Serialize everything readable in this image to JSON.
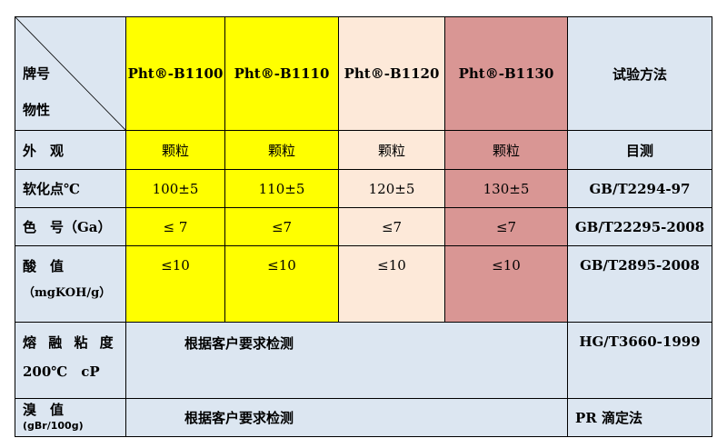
{
  "header": {
    "corner_top": "牌号",
    "corner_bottom": "物性",
    "products": [
      "Pht®-B1100",
      "Pht®-B1110",
      "Pht®-B1120",
      "Pht®-B1130"
    ],
    "method": "试验方法"
  },
  "rows": [
    {
      "label": "外　观",
      "values": [
        "颗粒",
        "颗粒",
        "颗粒",
        "颗粒"
      ],
      "method": "目测"
    },
    {
      "label": "软化点℃",
      "values": [
        "100±5",
        "110±5",
        "120±5",
        "130±5"
      ],
      "method": "GB/T2294-97"
    },
    {
      "label": "色　号（Ga）",
      "values": [
        "≤ 7",
        "≤7",
        "≤7",
        "≤7"
      ],
      "method": "GB/T22295-2008"
    },
    {
      "label": "酸　值",
      "sublabel": "（mgKOH/g）",
      "values": [
        "≤10",
        "≤10",
        "≤10",
        "≤10"
      ],
      "method": "GB/T2895-2008"
    }
  ],
  "merged_rows": [
    {
      "label": "熔 融 粘 度",
      "sublabel": "200℃　cP",
      "value": "根据客户要求检测",
      "method": "HG/T3660-1999"
    },
    {
      "label": "溴　值",
      "sublabel": "(gBr/100g)",
      "value": "根据客户要求检测",
      "method": "PR 滴定法"
    }
  ],
  "colors": {
    "label_bg": "#dce6f1",
    "b1100": "#ffff00",
    "b1110": "#ffff00",
    "b1120": "#fde9d9",
    "b1130": "#d99694"
  }
}
